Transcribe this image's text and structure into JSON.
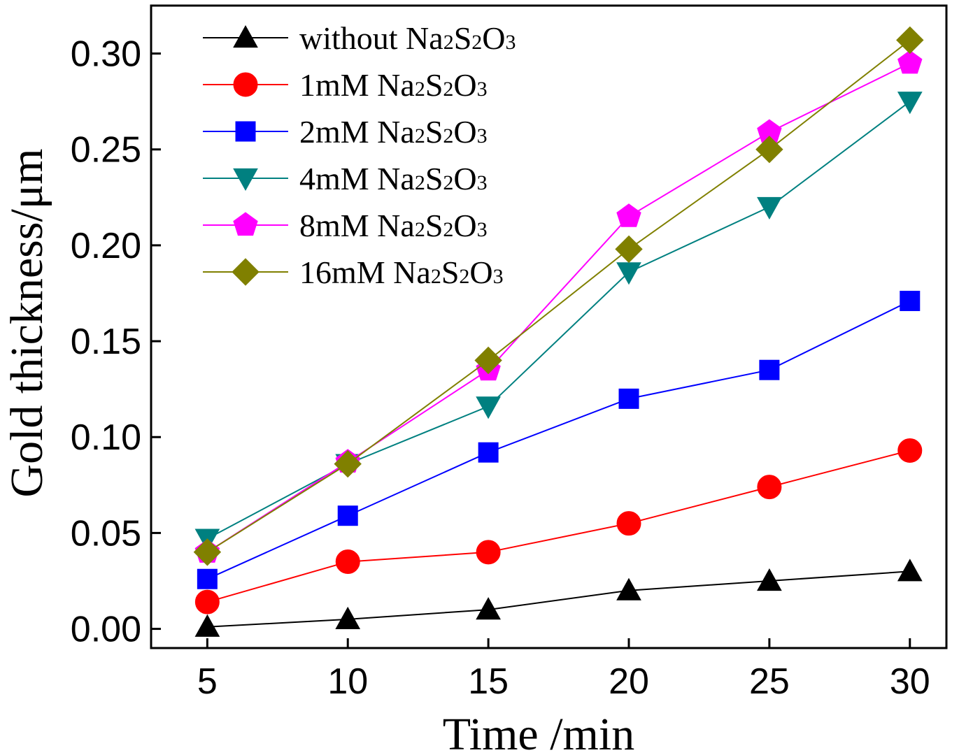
{
  "chart_data": {
    "type": "line",
    "xlabel": "Time /min",
    "ylabel": "Gold thickness/μm",
    "xlim": [
      3,
      31.3
    ],
    "ylim": [
      -0.01,
      0.325
    ],
    "x": [
      5,
      10,
      15,
      20,
      25,
      30
    ],
    "xticks": [
      "5",
      "10",
      "15",
      "20",
      "25",
      "30"
    ],
    "yticks": [
      "0.00",
      "0.05",
      "0.10",
      "0.15",
      "0.20",
      "0.25",
      "0.30"
    ],
    "grid": false,
    "legend_position": "top-left",
    "series": [
      {
        "name": "without  Na2S2O3",
        "prefix": "without  ",
        "color": "#000000",
        "marker": "triangle-up",
        "values": [
          0.001,
          0.005,
          0.01,
          0.02,
          0.025,
          0.03
        ]
      },
      {
        "name": "1mM Na2S2O3",
        "prefix": "1mM ",
        "color": "#ff0000",
        "marker": "circle",
        "values": [
          0.014,
          0.035,
          0.04,
          0.055,
          0.074,
          0.093
        ]
      },
      {
        "name": "2mM Na2S2O3",
        "prefix": "2mM ",
        "color": "#0000ff",
        "marker": "square",
        "values": [
          0.026,
          0.059,
          0.092,
          0.12,
          0.135,
          0.171
        ]
      },
      {
        "name": "4mM Na2S2O3",
        "prefix": "4mM ",
        "color": "#008080",
        "marker": "triangle-down",
        "values": [
          0.047,
          0.086,
          0.116,
          0.186,
          0.22,
          0.275
        ]
      },
      {
        "name": "8mM Na2S2O3",
        "prefix": "8mM ",
        "color": "#ff00ff",
        "marker": "pentagon",
        "values": [
          0.04,
          0.087,
          0.135,
          0.215,
          0.259,
          0.295
        ]
      },
      {
        "name": "16mM Na2S2O3",
        "prefix": "16mM ",
        "color": "#808000",
        "marker": "diamond",
        "values": [
          0.04,
          0.086,
          0.14,
          0.198,
          0.25,
          0.307
        ]
      }
    ]
  }
}
